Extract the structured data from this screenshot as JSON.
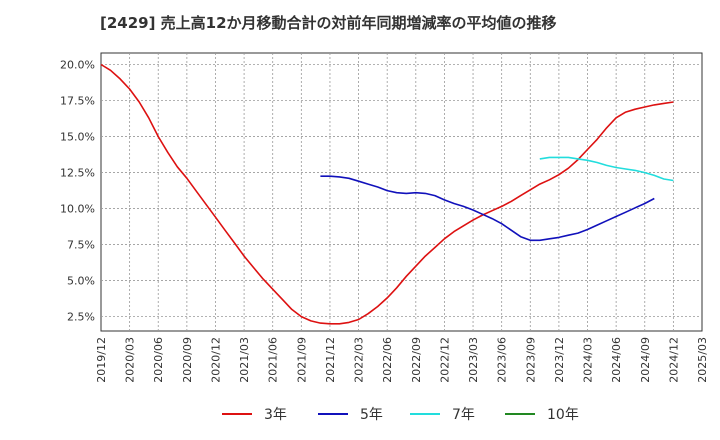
{
  "chart_data": {
    "type": "line",
    "title": "[2429]  売上高12か月移動合計の対前年同期増減率の平均値の推移",
    "xlabel": "",
    "ylabel": "",
    "x_range": [
      "2019-12",
      "2025-03"
    ],
    "ylim": [
      1.5,
      20.8
    ],
    "grid": true,
    "legend_position": "bottom",
    "x_ticks": [
      "2019/12",
      "2020/03",
      "2020/06",
      "2020/09",
      "2020/12",
      "2021/03",
      "2021/06",
      "2021/09",
      "2021/12",
      "2022/03",
      "2022/06",
      "2022/09",
      "2022/12",
      "2023/03",
      "2023/06",
      "2023/09",
      "2023/12",
      "2024/03",
      "2024/06",
      "2024/09",
      "2024/12",
      "2025/03"
    ],
    "y_ticks": [
      {
        "value": 2.5,
        "label": "2.5%"
      },
      {
        "value": 5.0,
        "label": "5.0%"
      },
      {
        "value": 7.5,
        "label": "7.5%"
      },
      {
        "value": 10.0,
        "label": "10.0%"
      },
      {
        "value": 12.5,
        "label": "12.5%"
      },
      {
        "value": 15.0,
        "label": "15.0%"
      },
      {
        "value": 17.5,
        "label": "17.5%"
      },
      {
        "value": 20.0,
        "label": "20.0%"
      }
    ],
    "series": [
      {
        "name": "3年",
        "color": "#dd1111",
        "points": [
          [
            "2019-12",
            20.0
          ],
          [
            "2020-01",
            19.6
          ],
          [
            "2020-02",
            19.0
          ],
          [
            "2020-03",
            18.3
          ],
          [
            "2020-04",
            17.4
          ],
          [
            "2020-05",
            16.3
          ],
          [
            "2020-06",
            15.0
          ],
          [
            "2020-07",
            13.9
          ],
          [
            "2020-08",
            12.9
          ],
          [
            "2020-09",
            12.1
          ],
          [
            "2020-10",
            11.2
          ],
          [
            "2020-11",
            10.3
          ],
          [
            "2020-12",
            9.4
          ],
          [
            "2021-01",
            8.5
          ],
          [
            "2021-02",
            7.6
          ],
          [
            "2021-03",
            6.7
          ],
          [
            "2021-04",
            5.9
          ],
          [
            "2021-05",
            5.1
          ],
          [
            "2021-06",
            4.4
          ],
          [
            "2021-07",
            3.7
          ],
          [
            "2021-08",
            3.0
          ],
          [
            "2021-09",
            2.5
          ],
          [
            "2021-10",
            2.2
          ],
          [
            "2021-11",
            2.05
          ],
          [
            "2021-12",
            2.0
          ],
          [
            "2022-01",
            2.0
          ],
          [
            "2022-02",
            2.1
          ],
          [
            "2022-03",
            2.3
          ],
          [
            "2022-04",
            2.7
          ],
          [
            "2022-05",
            3.2
          ],
          [
            "2022-06",
            3.8
          ],
          [
            "2022-07",
            4.5
          ],
          [
            "2022-08",
            5.3
          ],
          [
            "2022-09",
            6.0
          ],
          [
            "2022-10",
            6.7
          ],
          [
            "2022-11",
            7.3
          ],
          [
            "2022-12",
            7.9
          ],
          [
            "2023-01",
            8.4
          ],
          [
            "2023-02",
            8.8
          ],
          [
            "2023-03",
            9.2
          ],
          [
            "2023-04",
            9.55
          ],
          [
            "2023-05",
            9.85
          ],
          [
            "2023-06",
            10.15
          ],
          [
            "2023-07",
            10.5
          ],
          [
            "2023-08",
            10.9
          ],
          [
            "2023-09",
            11.3
          ],
          [
            "2023-10",
            11.7
          ],
          [
            "2023-11",
            12.0
          ],
          [
            "2023-12",
            12.35
          ],
          [
            "2024-01",
            12.8
          ],
          [
            "2024-02",
            13.4
          ],
          [
            "2024-03",
            14.1
          ],
          [
            "2024-04",
            14.8
          ],
          [
            "2024-05",
            15.6
          ],
          [
            "2024-06",
            16.3
          ],
          [
            "2024-07",
            16.7
          ],
          [
            "2024-08",
            16.9
          ],
          [
            "2024-09",
            17.05
          ],
          [
            "2024-10",
            17.2
          ],
          [
            "2024-11",
            17.3
          ],
          [
            "2024-12",
            17.4
          ]
        ]
      },
      {
        "name": "5年",
        "color": "#1111bb",
        "points": [
          [
            "2021-11",
            12.25
          ],
          [
            "2021-12",
            12.25
          ],
          [
            "2022-01",
            12.2
          ],
          [
            "2022-02",
            12.1
          ],
          [
            "2022-03",
            11.9
          ],
          [
            "2022-04",
            11.7
          ],
          [
            "2022-05",
            11.5
          ],
          [
            "2022-06",
            11.25
          ],
          [
            "2022-07",
            11.1
          ],
          [
            "2022-08",
            11.05
          ],
          [
            "2022-09",
            11.1
          ],
          [
            "2022-10",
            11.05
          ],
          [
            "2022-11",
            10.9
          ],
          [
            "2022-12",
            10.6
          ],
          [
            "2023-01",
            10.35
          ],
          [
            "2023-02",
            10.15
          ],
          [
            "2023-03",
            9.9
          ],
          [
            "2023-04",
            9.6
          ],
          [
            "2023-05",
            9.3
          ],
          [
            "2023-06",
            8.95
          ],
          [
            "2023-07",
            8.5
          ],
          [
            "2023-08",
            8.05
          ],
          [
            "2023-09",
            7.8
          ],
          [
            "2023-10",
            7.8
          ],
          [
            "2023-11",
            7.9
          ],
          [
            "2023-12",
            8.0
          ],
          [
            "2024-01",
            8.15
          ],
          [
            "2024-02",
            8.3
          ],
          [
            "2024-03",
            8.55
          ],
          [
            "2024-04",
            8.85
          ],
          [
            "2024-05",
            9.15
          ],
          [
            "2024-06",
            9.45
          ],
          [
            "2024-07",
            9.75
          ],
          [
            "2024-08",
            10.05
          ],
          [
            "2024-09",
            10.35
          ],
          [
            "2024-10",
            10.7
          ]
        ]
      },
      {
        "name": "7年",
        "color": "#22dddd",
        "points": [
          [
            "2023-10",
            13.45
          ],
          [
            "2023-11",
            13.55
          ],
          [
            "2023-12",
            13.55
          ],
          [
            "2024-01",
            13.55
          ],
          [
            "2024-02",
            13.45
          ],
          [
            "2024-03",
            13.35
          ],
          [
            "2024-04",
            13.2
          ],
          [
            "2024-05",
            13.0
          ],
          [
            "2024-06",
            12.85
          ],
          [
            "2024-07",
            12.75
          ],
          [
            "2024-08",
            12.65
          ],
          [
            "2024-09",
            12.5
          ],
          [
            "2024-10",
            12.3
          ],
          [
            "2024-11",
            12.05
          ],
          [
            "2024-12",
            11.95
          ]
        ]
      },
      {
        "name": "10年",
        "color": "#228822",
        "points": []
      }
    ]
  }
}
